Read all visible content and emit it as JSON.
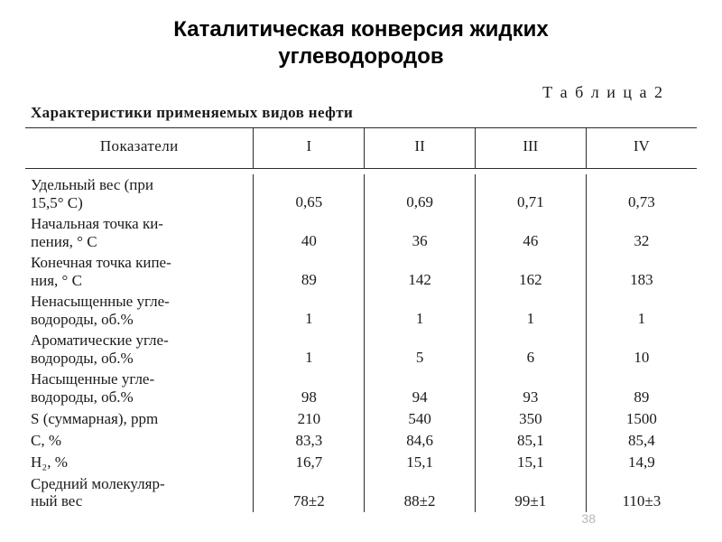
{
  "title_line1": "Каталитическая конверсия жидких",
  "title_line2": "углеводородов",
  "table_label": "Т а б л и ц а 2",
  "caption": "Характеристики применяемых видов нефти",
  "page_number": "38",
  "columns": {
    "header_label": "Показатели",
    "c1": "I",
    "c2": "II",
    "c3": "III",
    "c4": "IV"
  },
  "rows": [
    {
      "label": "Удельный  вес  (при\n15,5° С)",
      "v": [
        "0,65",
        "0,69",
        "0,71",
        "0,73"
      ]
    },
    {
      "label": "Начальная  точка  ки-\nпения,  ° С",
      "v": [
        "40",
        "36",
        "46",
        "32"
      ]
    },
    {
      "label": "Конечная  точка  кипе-\nния,  ° С",
      "v": [
        "89",
        "142",
        "162",
        "183"
      ]
    },
    {
      "label": "Ненасыщенные   угле-\nводороды,  об.%",
      "v": [
        "1",
        "1",
        "1",
        "1"
      ]
    },
    {
      "label": "Ароматические   угле-\nводороды,  об.%",
      "v": [
        "1",
        "5",
        "6",
        "10"
      ]
    },
    {
      "label": "Насыщенные     угле-\nводороды,  об.%",
      "v": [
        "98",
        "94",
        "93",
        "89"
      ]
    },
    {
      "label": "S  (суммарная),  ppm",
      "v": [
        "210",
        "540",
        "350",
        "1500"
      ]
    },
    {
      "label": "C,  %",
      "v": [
        "83,3",
        "84,6",
        "85,1",
        "85,4"
      ]
    },
    {
      "label": "H₂,  %",
      "v": [
        "16,7",
        "15,1",
        "15,1",
        "14,9"
      ]
    },
    {
      "label": "Средний   молекуляр-\nный  вес",
      "v": [
        "78±2",
        "88±2",
        "99±1",
        "110±3"
      ]
    }
  ],
  "style": {
    "title_font": "Arial",
    "title_size_pt": 18,
    "title_weight": "bold",
    "body_font": "Times New Roman",
    "body_size_pt": 13,
    "text_color": "#1a1a1a",
    "rule_color": "#2b2b2b",
    "background": "#ffffff",
    "pagenum_color": "#b7b7b7"
  }
}
